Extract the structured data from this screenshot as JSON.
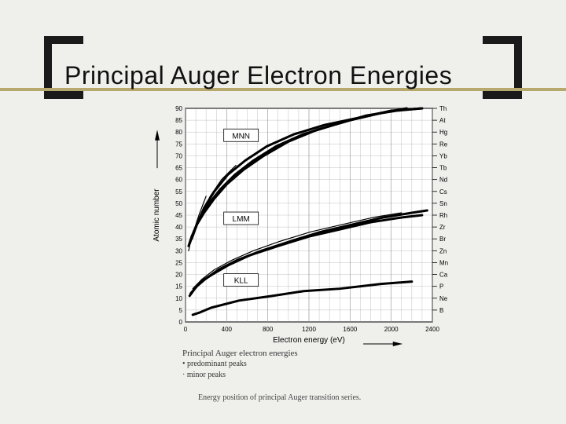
{
  "title": "Principal Auger Electron Energies",
  "chart": {
    "type": "line",
    "xlabel": "Electron energy (eV)",
    "ylabel": "Atomic number",
    "xlim": [
      0,
      2400
    ],
    "xtick_step": 400,
    "ylim": [
      0,
      90
    ],
    "ytick_step": 5,
    "background_color": "#ffffff",
    "grid_color": "#999999",
    "axis_color": "#000000",
    "label_fontsize": 10,
    "tick_fontsize": 8,
    "stroke_width_major": 3.0,
    "stroke_width_minor": 1.2,
    "series_labels": [
      {
        "text": "MNN",
        "x": 540,
        "y": 78,
        "boxed": true
      },
      {
        "text": "LMM",
        "x": 540,
        "y": 43,
        "boxed": true
      },
      {
        "text": "KLL",
        "x": 540,
        "y": 17,
        "boxed": true
      }
    ],
    "right_element_labels": [
      {
        "text": "Th",
        "y": 90
      },
      {
        "text": "At",
        "y": 85
      },
      {
        "text": "Hg",
        "y": 80
      },
      {
        "text": "Re",
        "y": 75
      },
      {
        "text": "Yb",
        "y": 70
      },
      {
        "text": "Tb",
        "y": 65
      },
      {
        "text": "Nd",
        "y": 60
      },
      {
        "text": "Cs",
        "y": 55
      },
      {
        "text": "Sn",
        "y": 50
      },
      {
        "text": "Rh",
        "y": 45
      },
      {
        "text": "Zr",
        "y": 40
      },
      {
        "text": "Br",
        "y": 35
      },
      {
        "text": "Zn",
        "y": 30
      },
      {
        "text": "Mn",
        "y": 25
      },
      {
        "text": "Ca",
        "y": 20
      },
      {
        "text": "P",
        "y": 15
      },
      {
        "text": "Ne",
        "y": 10
      },
      {
        "text": "B",
        "y": 5
      }
    ],
    "curves": [
      {
        "name": "KLL-major",
        "major": true,
        "pts": [
          [
            70,
            3
          ],
          [
            140,
            4
          ],
          [
            250,
            6
          ],
          [
            520,
            9
          ],
          [
            850,
            11
          ],
          [
            1150,
            13
          ],
          [
            1500,
            14
          ],
          [
            1900,
            16
          ],
          [
            2200,
            17
          ]
        ]
      },
      {
        "name": "LMM-major-a",
        "major": true,
        "pts": [
          [
            40,
            11
          ],
          [
            90,
            14
          ],
          [
            150,
            17
          ],
          [
            260,
            20
          ],
          [
            420,
            24
          ],
          [
            620,
            28
          ],
          [
            900,
            32
          ],
          [
            1200,
            36
          ],
          [
            1500,
            39
          ],
          [
            1800,
            42
          ],
          [
            2100,
            44
          ],
          [
            2300,
            45
          ]
        ]
      },
      {
        "name": "LMM-major-b",
        "major": true,
        "pts": [
          [
            50,
            12
          ],
          [
            110,
            15
          ],
          [
            190,
            18
          ],
          [
            320,
            22
          ],
          [
            500,
            26
          ],
          [
            740,
            30
          ],
          [
            1020,
            34
          ],
          [
            1320,
            38
          ],
          [
            1620,
            41
          ],
          [
            1920,
            44
          ],
          [
            2200,
            46
          ],
          [
            2350,
            47
          ]
        ]
      },
      {
        "name": "LMM-minor",
        "major": false,
        "pts": [
          [
            70,
            14
          ],
          [
            160,
            18
          ],
          [
            280,
            22
          ],
          [
            450,
            26
          ],
          [
            660,
            30
          ],
          [
            920,
            34
          ],
          [
            1220,
            38
          ],
          [
            1520,
            41
          ],
          [
            1820,
            44
          ],
          [
            2100,
            46
          ]
        ]
      },
      {
        "name": "MNN-major-a",
        "major": true,
        "pts": [
          [
            30,
            32
          ],
          [
            60,
            36
          ],
          [
            110,
            41
          ],
          [
            180,
            46
          ],
          [
            280,
            52
          ],
          [
            400,
            58
          ],
          [
            560,
            64
          ],
          [
            760,
            70
          ],
          [
            1000,
            76
          ],
          [
            1280,
            81
          ],
          [
            1600,
            85
          ],
          [
            1900,
            88
          ],
          [
            2150,
            90
          ]
        ]
      },
      {
        "name": "MNN-major-b",
        "major": true,
        "pts": [
          [
            40,
            33
          ],
          [
            80,
            38
          ],
          [
            140,
            44
          ],
          [
            230,
            50
          ],
          [
            340,
            56
          ],
          [
            480,
            62
          ],
          [
            660,
            68
          ],
          [
            880,
            74
          ],
          [
            1140,
            79
          ],
          [
            1440,
            83
          ],
          [
            1760,
            87
          ],
          [
            2050,
            89
          ],
          [
            2300,
            90
          ]
        ]
      },
      {
        "name": "MNN-major-c",
        "major": true,
        "pts": [
          [
            60,
            35
          ],
          [
            110,
            41
          ],
          [
            180,
            48
          ],
          [
            280,
            55
          ],
          [
            410,
            62
          ],
          [
            580,
            68
          ],
          [
            790,
            74
          ],
          [
            1050,
            79
          ],
          [
            1350,
            83
          ],
          [
            1680,
            86
          ],
          [
            2000,
            89
          ],
          [
            2300,
            90
          ]
        ]
      },
      {
        "name": "MNN-minor-a",
        "major": false,
        "pts": [
          [
            30,
            30
          ],
          [
            50,
            34
          ],
          [
            85,
            39
          ],
          [
            130,
            45
          ],
          [
            200,
            53
          ]
        ]
      },
      {
        "name": "MNN-minor-b",
        "major": false,
        "pts": [
          [
            100,
            40
          ],
          [
            160,
            46
          ],
          [
            240,
            53
          ],
          [
            350,
            60
          ],
          [
            490,
            66
          ]
        ]
      }
    ]
  },
  "legend": {
    "title": "Principal Auger electron energies",
    "rows": [
      {
        "marker": "•",
        "text": "predominant peaks"
      },
      {
        "marker": "·",
        "text": "minor peaks"
      }
    ]
  },
  "caption": "Energy position of principal Auger transition series."
}
